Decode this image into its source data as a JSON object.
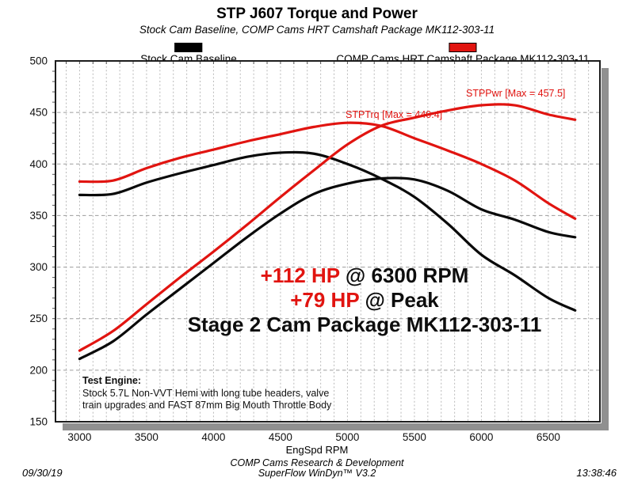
{
  "header": {
    "title": "STP J607 Torque and Power",
    "subtitle": "Stock Cam Baseline, COMP Cams HRT Camshaft Package MK112-303-11"
  },
  "legend": {
    "items": [
      {
        "label": "Stock Cam Baseline",
        "color": "#000000"
      },
      {
        "label": "COMP Cams HRT Camshaft Package MK112-303-11",
        "color": "#e11410"
      }
    ]
  },
  "chart_data": {
    "type": "line",
    "title": "STP J607 Torque and Power",
    "xlabel": "EngSpd RPM",
    "ylabel": "",
    "x_range": [
      2820,
      6885
    ],
    "y_range": [
      150,
      500
    ],
    "x_ticks": [
      3000,
      3500,
      4000,
      4500,
      5000,
      5500,
      6000,
      6500
    ],
    "y_ticks": [
      150,
      200,
      250,
      300,
      350,
      400,
      450,
      500
    ],
    "grid": {
      "vertical_every": 100,
      "horizontal_every": 50,
      "y_minor_tick_step": 10,
      "x_minor_tick_step": 100,
      "vertical_color": "#b9b9b9",
      "horizontal_color": "#9c9c9c"
    },
    "x": [
      3000,
      3250,
      3500,
      3750,
      4000,
      4250,
      4500,
      4750,
      5000,
      5250,
      5500,
      5750,
      6000,
      6250,
      6500,
      6700
    ],
    "series": [
      {
        "name": "STPTrq Stock Cam Baseline",
        "color": "#0a0a0a",
        "values": [
          370,
          371,
          382,
          391,
          399,
          407,
          411,
          410,
          400,
          386,
          368,
          342,
          312,
          292,
          270,
          258
        ]
      },
      {
        "name": "STPPwr Stock Cam Baseline",
        "color": "#0a0a0a",
        "values": [
          211,
          228,
          254,
          279,
          304,
          329,
          352,
          371,
          381,
          386,
          385,
          374,
          356,
          346,
          334,
          329
        ]
      },
      {
        "name": "STPTrq COMP Cams HRT Camshaft Package MK112-303-11",
        "color": "#e11410",
        "max": 440.4,
        "values": [
          383,
          384,
          396,
          406,
          414,
          422,
          429,
          436,
          440,
          437,
          425,
          413,
          400,
          384,
          362,
          347
        ]
      },
      {
        "name": "STPPwr COMP Cams HRT Camshaft Package MK112-303-11",
        "color": "#e11410",
        "max": 457.5,
        "values": [
          219,
          238,
          264,
          290,
          315,
          341,
          368,
          394,
          419,
          437,
          445,
          452,
          457,
          457,
          448,
          443
        ]
      }
    ],
    "curve_labels": [
      {
        "text": "STPPwr [Max = 457.5]",
        "color": "#e11410"
      },
      {
        "text": "STPTrq [Max = 440.4]",
        "color": "#e11410"
      }
    ],
    "frame_color": "#1c1c1c",
    "shadow_color": "#909090",
    "legend_position": "top"
  },
  "annotations": {
    "line1_red": "+112 HP",
    "line1_black": " @ 6300 RPM",
    "line2_red": "+79 HP",
    "line2_black": " @ Peak",
    "line3": "Stage 2 Cam Package MK112-303-11",
    "accent_color": "#e11410"
  },
  "test_engine": {
    "heading": "Test Engine:",
    "line1": "Stock 5.7L Non-VVT Hemi with long tube headers, valve",
    "line2": "train upgrades and FAST 87mm Big Mouth Throttle Body"
  },
  "footer": {
    "org": "COMP Cams Research & Development",
    "software": "SuperFlow WinDyn™ V3.2",
    "date": "09/30/19",
    "time": "13:38:46"
  }
}
